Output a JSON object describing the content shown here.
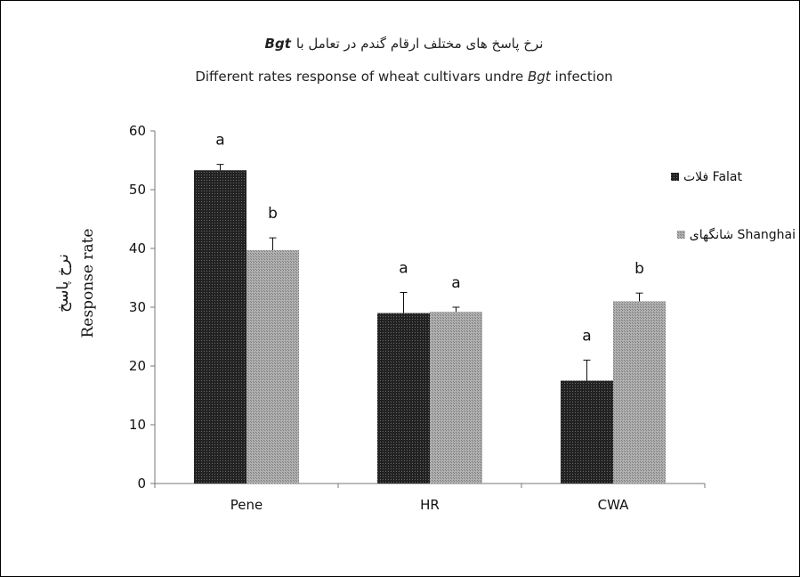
{
  "chart_data": {
    "type": "bar",
    "title_fa": "نرخ پاسخ های مختلف ارقام گندم در تعامل با",
    "title_fa_italic": "Bgt",
    "title_en_pre": "Different rates response of wheat cultivars undre ",
    "title_en_italic": "Bgt",
    "title_en_post": "  infection",
    "ylabel_en": "Response rate",
    "ylabel_fa": "نرخ پاسخ",
    "xlabel": "",
    "categories": [
      "Pene",
      "HR",
      "CWA"
    ],
    "ylim": [
      0,
      60
    ],
    "yticks": [
      0,
      10,
      20,
      30,
      40,
      50,
      60
    ],
    "grid": false,
    "legend_position": "right",
    "series": [
      {
        "name": "فلات Falat",
        "color": "#2b2b2b",
        "pattern": "dark-dotted",
        "values": [
          53.3,
          29.0,
          17.5
        ],
        "errors": [
          1.0,
          3.5,
          3.5
        ],
        "letters": [
          "a",
          "a",
          "a"
        ]
      },
      {
        "name": "شانگهای Shanghai",
        "color": "#9a9a9a",
        "pattern": "light-hatched",
        "values": [
          39.7,
          29.2,
          31.0
        ],
        "errors": [
          2.1,
          0.8,
          1.4
        ],
        "letters": [
          "b",
          "a",
          "b"
        ]
      }
    ]
  }
}
